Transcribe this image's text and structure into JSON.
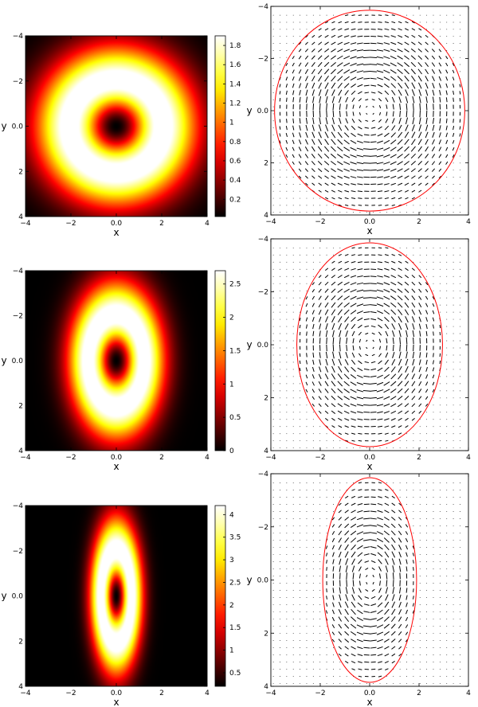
{
  "chart_data": [
    {
      "type": "heatmap",
      "panel": 1,
      "field": "ring",
      "aspect": 1.0,
      "peak": 1.9,
      "xlabel": "x",
      "ylabel": "y",
      "xticks": [
        "−4",
        "−2",
        "0.0",
        "2",
        "4"
      ],
      "yticks": [
        "4",
        "2",
        "0.0",
        "−2",
        "−4"
      ],
      "xlim": [
        -4,
        4
      ],
      "ylim": [
        -4,
        4
      ],
      "colormap": "hot",
      "colorbar_ticks": [
        "1.8",
        "1.6",
        "1.4",
        "1.2",
        "1",
        "0.8",
        "0.6",
        "0.4",
        "0.2"
      ],
      "colorbar_values": [
        1.8,
        1.6,
        1.4,
        1.2,
        1.0,
        0.8,
        0.6,
        0.4,
        0.2
      ],
      "colorbar_range": [
        0.02,
        1.9
      ]
    },
    {
      "type": "quiver",
      "panel": 2,
      "field": "vortex",
      "aspect": 1.0,
      "xlabel": "x",
      "ylabel": "y",
      "xticks": [
        "−4",
        "−2",
        "0.0",
        "2",
        "4"
      ],
      "yticks": [
        "4",
        "2",
        "0.0",
        "−2",
        "−4"
      ],
      "xlim": [
        -4,
        4
      ],
      "ylim": [
        -4,
        4
      ],
      "ellipse": {
        "a": 3.85,
        "b": 3.85,
        "color": "#ff0000"
      }
    },
    {
      "type": "heatmap",
      "panel": 3,
      "field": "ring",
      "aspect": 0.6,
      "peak": 2.7,
      "xlabel": "x",
      "ylabel": "y",
      "xticks": [
        "−4",
        "−2",
        "0.0",
        "2",
        "4"
      ],
      "yticks": [
        "4",
        "2",
        "0.0",
        "−2",
        "−4"
      ],
      "xlim": [
        -4,
        4
      ],
      "ylim": [
        -4,
        4
      ],
      "colormap": "hot",
      "colorbar_ticks": [
        "2.5",
        "2",
        "1.5",
        "1",
        "0.5",
        "0"
      ],
      "colorbar_values": [
        2.5,
        2.0,
        1.5,
        1.0,
        0.5,
        0.0
      ],
      "colorbar_range": [
        0.0,
        2.7
      ]
    },
    {
      "type": "quiver",
      "panel": 4,
      "field": "vortex",
      "aspect": 0.6,
      "xlabel": "x",
      "ylabel": "y",
      "xticks": [
        "−4",
        "−2",
        "0.0",
        "2",
        "4"
      ],
      "yticks": [
        "4",
        "2",
        "0.0",
        "−2",
        "−4"
      ],
      "xlim": [
        -4,
        4
      ],
      "ylim": [
        -4,
        4
      ],
      "ellipse": {
        "a": 2.95,
        "b": 3.85,
        "color": "#ff0000"
      }
    },
    {
      "type": "heatmap",
      "panel": 5,
      "field": "ring",
      "aspect": 0.33,
      "peak": 4.2,
      "xlabel": "x",
      "ylabel": "y",
      "xticks": [
        "−4",
        "−2",
        "0.0",
        "2",
        "4"
      ],
      "yticks": [
        "4",
        "2",
        "0.0",
        "−2",
        "−4"
      ],
      "xlim": [
        -4,
        4
      ],
      "ylim": [
        -4,
        4
      ],
      "colormap": "hot",
      "colorbar_ticks": [
        "4",
        "3.5",
        "3",
        "2.5",
        "2",
        "1.5",
        "1",
        "0.5"
      ],
      "colorbar_values": [
        4.0,
        3.5,
        3.0,
        2.5,
        2.0,
        1.5,
        1.0,
        0.5
      ],
      "colorbar_range": [
        0.2,
        4.2
      ]
    },
    {
      "type": "quiver",
      "panel": 6,
      "field": "vortex",
      "aspect": 0.5,
      "xlabel": "x",
      "ylabel": "y",
      "xticks": [
        "−4",
        "−2",
        "0.0",
        "2",
        "4"
      ],
      "yticks": [
        "4",
        "2",
        "0.0",
        "−2",
        "−4"
      ],
      "xlim": [
        -4,
        4
      ],
      "ylim": [
        -4,
        4
      ],
      "ellipse": {
        "a": 1.9,
        "b": 3.85,
        "color": "#ff0000"
      }
    }
  ]
}
